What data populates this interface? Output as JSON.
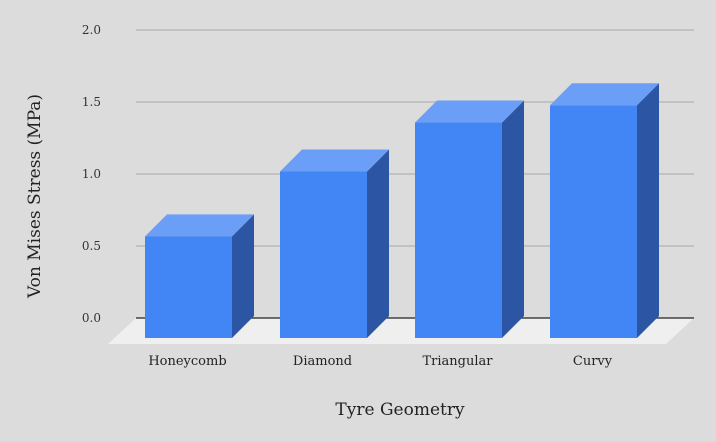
{
  "chart_data": {
    "type": "bar",
    "categories": [
      "Honeycomb",
      "Diamond",
      "Triangular",
      "Curvy"
    ],
    "values": [
      0.72,
      1.17,
      1.51,
      1.63
    ],
    "title": "",
    "xlabel": "Tyre Geometry",
    "ylabel": "Von Mises Stress (MPa)",
    "ylim": [
      0,
      2.0
    ],
    "yticks": [
      "0.0",
      "0.5",
      "1.0",
      "1.5",
      "2.0"
    ],
    "grid": true,
    "style": "3d"
  },
  "colors": {
    "background": "#dcdcdc",
    "bar_front": "#4285f4",
    "bar_top": "#6b9ff7",
    "bar_side": "#2c56a3",
    "floor": "#efefef",
    "gridline": "#a9a9a9",
    "baseline": "#222222"
  }
}
